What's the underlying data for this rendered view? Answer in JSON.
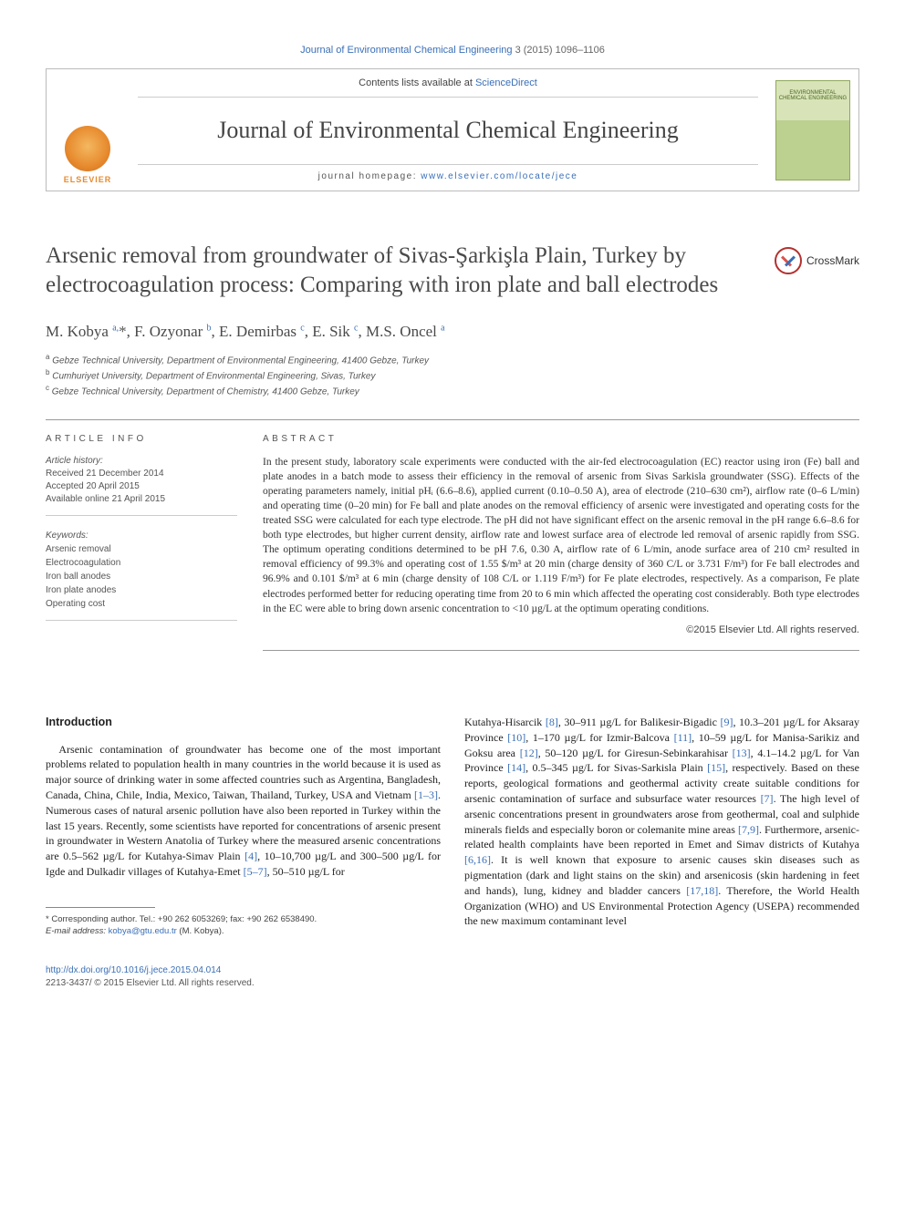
{
  "journal_bar": {
    "journal_link": "Journal of Environmental Chemical Engineering",
    "citation": " 3 (2015) 1096–1106"
  },
  "header": {
    "contents_prefix": "Contents lists available at ",
    "contents_link": "ScienceDirect",
    "journal_name": "Journal of Environmental Chemical Engineering",
    "homepage_prefix": "journal homepage: ",
    "homepage_url": "www.elsevier.com/locate/jece",
    "elsevier_label": "ELSEVIER",
    "cover_text": "ENVIRONMENTAL CHEMICAL ENGINEERING"
  },
  "crossmark_label": "CrossMark",
  "title": "Arsenic removal from groundwater of Sivas-Şarkişla Plain, Turkey by electrocoagulation process: Comparing with iron plate and ball electrodes",
  "authors_html": "M. Kobya <sup>a,</sup><span class='star'>*</span>, F. Ozyonar <sup>b</sup>, E. Demirbas <sup>c</sup>, E. Sik <sup>c</sup>, M.S. Oncel <sup>a</sup>",
  "affiliations": {
    "a": "Gebze Technical University, Department of Environmental Engineering, 41400 Gebze, Turkey",
    "b": "Cumhuriyet University, Department of Environmental Engineering, Sivas, Turkey",
    "c": "Gebze Technical University, Department of Chemistry, 41400 Gebze, Turkey"
  },
  "article_info": {
    "heading": "ARTICLE INFO",
    "history_label": "Article history:",
    "received": "Received 21 December 2014",
    "accepted": "Accepted 20 April 2015",
    "online": "Available online 21 April 2015",
    "keywords_label": "Keywords:",
    "keywords": [
      "Arsenic removal",
      "Electrocoagulation",
      "Iron ball anodes",
      "Iron plate anodes",
      "Operating cost"
    ]
  },
  "abstract": {
    "heading": "ABSTRACT",
    "text": "In the present study, laboratory scale experiments were conducted with the air-fed electrocoagulation (EC) reactor using iron (Fe) ball and plate anodes in a batch mode to assess their efficiency in the removal of arsenic from Sivas Sarkisla groundwater (SSG). Effects of the operating parameters namely, initial pHᵢ (6.6–8.6), applied current (0.10–0.50 A), area of electrode (210–630 cm²), airflow rate (0–6 L/min) and operating time (0–20 min) for Fe ball and plate anodes on the removal efficiency of arsenic were investigated and operating costs for the treated SSG were calculated for each type electrode. The pH did not have significant effect on the arsenic removal in the pH range 6.6–8.6 for both type electrodes, but higher current density, airflow rate and lowest surface area of electrode led removal of arsenic rapidly from SSG. The optimum operating conditions determined to be pH 7.6, 0.30 A, airflow rate of 6 L/min, anode surface area of 210 cm² resulted in removal efficiency of 99.3% and operating cost of 1.55 $/m³ at 20 min (charge density of 360 C/L or 3.731 F/m³) for Fe ball electrodes and 96.9% and 0.101 $/m³ at 6 min (charge density of 108 C/L or 1.119 F/m³) for Fe plate electrodes, respectively. As a comparison, Fe plate electrodes performed better for reducing operating time from 20 to 6 min which affected the operating cost considerably. Both type electrodes in the EC were able to bring down arsenic concentration to <10 µg/L at the optimum operating conditions.",
    "copyright": "©2015 Elsevier Ltd. All rights reserved."
  },
  "intro": {
    "heading": "Introduction",
    "col1": "Arsenic contamination of groundwater has become one of the most important problems related to population health in many countries in the world because it is used as major source of drinking water in some affected countries such as Argentina, Bangladesh, Canada, China, Chile, India, Mexico, Taiwan, Thailand, Turkey, USA and Vietnam <span class='ref'>[1–3]</span>. Numerous cases of natural arsenic pollution have also been reported in Turkey within the last 15 years. Recently, some scientists have reported for concentrations of arsenic present in groundwater in Western Anatolia of Turkey where the measured arsenic concentrations are 0.5–562 µg/L for Kutahya-Simav Plain <span class='ref'>[4]</span>, 10–10,700 µg/L and 300–500 µg/L for Igde and Dulkadir villages of Kutahya-Emet <span class='ref'>[5–7]</span>, 50–510 µg/L for",
    "col2": "Kutahya-Hisarcik <span class='ref'>[8]</span>, 30–911 µg/L for Balikesir-Bigadic <span class='ref'>[9]</span>, 10.3–201 µg/L for Aksaray Province <span class='ref'>[10]</span>, 1–170 µg/L for Izmir-Balcova <span class='ref'>[11]</span>, 10–59 µg/L for Manisa-Sarikiz and Goksu area <span class='ref'>[12]</span>, 50–120 µg/L for Giresun-Sebinkarahisar <span class='ref'>[13]</span>, 4.1–14.2 µg/L for Van Province <span class='ref'>[14]</span>, 0.5–345 µg/L for Sivas-Sarkisla Plain <span class='ref'>[15]</span>, respectively. Based on these reports, geological formations and geothermal activity create suitable conditions for arsenic contamination of surface and subsurface water resources <span class='ref'>[7]</span>. The high level of arsenic concentrations present in groundwaters arose from geothermal, coal and sulphide minerals fields and especially boron or colemanite mine areas <span class='ref'>[7,9]</span>. Furthermore, arsenic-related health complaints have been reported in Emet and Simav districts of Kutahya <span class='ref'>[6,16]</span>. It is well known that exposure to arsenic causes skin diseases such as pigmentation (dark and light stains on the skin) and arsenicosis (skin hardening in feet and hands), lung, kidney and bladder cancers <span class='ref'>[17,18]</span>. Therefore, the World Health Organization (WHO) and US Environmental Protection Agency (USEPA) recommended the new maximum contaminant level"
  },
  "footnote": {
    "corr": "* Corresponding author. Tel.: +90 262 6053269; fax: +90 262 6538490.",
    "email_label": "E-mail address: ",
    "email": "kobya@gtu.edu.tr",
    "email_who": " (M. Kobya)."
  },
  "footer": {
    "doi": "http://dx.doi.org/10.1016/j.jece.2015.04.014",
    "issn_line": "2213-3437/ © 2015 Elsevier Ltd. All rights reserved."
  }
}
